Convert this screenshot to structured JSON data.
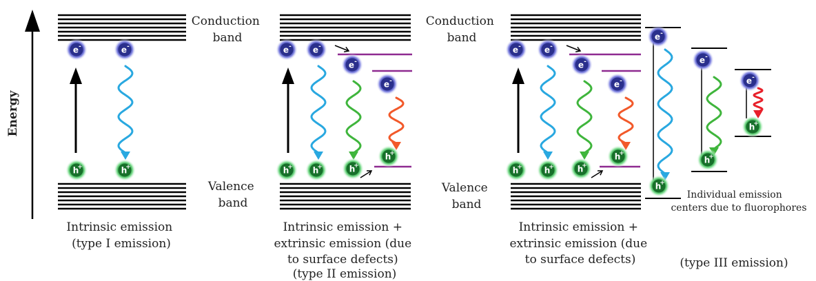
{
  "axis": {
    "label": "Energy"
  },
  "particles": {
    "electron": "e",
    "hole": "h",
    "electron_sign": "-",
    "hole_sign": "+"
  },
  "colors": {
    "electron": "#2c3e9e",
    "electron_glow": "#8d8fe6",
    "hole": "#1f8f3c",
    "hole_glow": "#7ddc8e",
    "band_lines": "#000000",
    "defect_level": "#8e2a90",
    "emission_blue": "#29a8e0",
    "emission_green": "#3fb53c",
    "emission_orange": "#f2592a",
    "emission_red": "#e8202a"
  },
  "panel1": {
    "conduction_label": [
      "Conduction",
      "band"
    ],
    "valence_label": [
      "Valence",
      "band"
    ],
    "caption": [
      "Intrinsic emission",
      "(type I emission)"
    ]
  },
  "panel2": {
    "caption": [
      "Intrinsic emission +",
      "extrinsic emission (due",
      "to surface defects)",
      "(type II emission)"
    ]
  },
  "panel3": {
    "conduction_label": [
      "Conduction",
      "band"
    ],
    "valence_label": [
      "Valence",
      "band"
    ],
    "caption": [
      "Intrinsic emission +",
      "extrinsic emission (due",
      "to surface defects)"
    ]
  },
  "panel4": {
    "label": [
      "Individual emission",
      "centers due to fluorophores"
    ],
    "caption": [
      "(type III emission)"
    ]
  }
}
